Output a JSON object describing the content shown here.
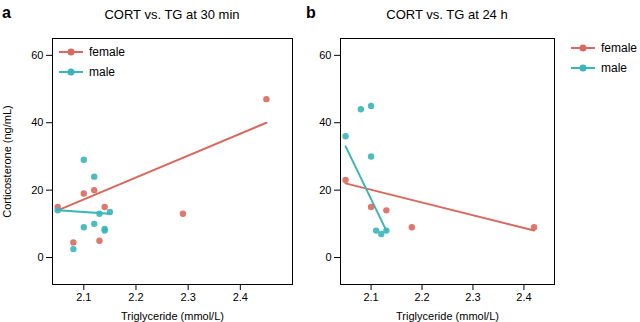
{
  "chart_data": [
    {
      "type": "scatter",
      "title": "CORT vs. TG at 30 min",
      "annotations": [
        "a"
      ],
      "x_label": "Triglyceride (mmol/L)",
      "y_label": "Corticosterone (ng/mL)",
      "xlim": [
        2.04,
        2.5
      ],
      "xticks": [
        2.1,
        2.2,
        2.3,
        2.4
      ],
      "ylim": [
        -8,
        65
      ],
      "yticks": [
        0,
        20,
        40,
        60
      ],
      "grid": false,
      "legend": "upper left",
      "series": [
        {
          "name": "female",
          "color": "#d9695f",
          "x": [
            2.05,
            2.08,
            2.1,
            2.12,
            2.13,
            2.14,
            2.29,
            2.45
          ],
          "values": [
            15.0,
            4.5,
            19.0,
            20.0,
            5.0,
            15.0,
            13.0,
            47.0
          ],
          "fit_x": [
            2.05,
            2.45
          ],
          "fit_values": [
            14.0,
            40.0
          ]
        },
        {
          "name": "male",
          "color": "#3ab5b8",
          "x": [
            2.05,
            2.08,
            2.1,
            2.1,
            2.12,
            2.12,
            2.13,
            2.14,
            2.14,
            2.15
          ],
          "values": [
            14.0,
            2.5,
            29.0,
            9.0,
            24.0,
            10.0,
            13.0,
            8.5,
            8.0,
            13.5
          ],
          "fit_x": [
            2.05,
            2.15
          ],
          "fit_values": [
            14.0,
            13.0
          ]
        }
      ]
    },
    {
      "type": "scatter",
      "title": "CORT vs. TG at 24 h",
      "annotations": [
        "b"
      ],
      "x_label": "Triglyceride (mmol/L)",
      "xlim": [
        2.04,
        2.46
      ],
      "xticks": [
        2.1,
        2.2,
        2.3,
        2.4
      ],
      "ylim": [
        -8,
        65
      ],
      "yticks": [
        0,
        20,
        40,
        60
      ],
      "grid": false,
      "legend": "right",
      "series": [
        {
          "name": "female",
          "color": "#d9695f",
          "x": [
            2.05,
            2.1,
            2.13,
            2.18,
            2.42
          ],
          "values": [
            23.0,
            15.0,
            14.0,
            9.0,
            9.0
          ],
          "fit_x": [
            2.05,
            2.42
          ],
          "fit_values": [
            22.0,
            8.0
          ]
        },
        {
          "name": "male",
          "color": "#3ab5b8",
          "x": [
            2.05,
            2.08,
            2.1,
            2.1,
            2.11,
            2.12,
            2.13
          ],
          "values": [
            36.0,
            44.0,
            45.0,
            30.0,
            8.0,
            7.0,
            8.0
          ],
          "fit_x": [
            2.05,
            2.13
          ],
          "fit_values": [
            33.0,
            8.0
          ]
        }
      ]
    }
  ]
}
